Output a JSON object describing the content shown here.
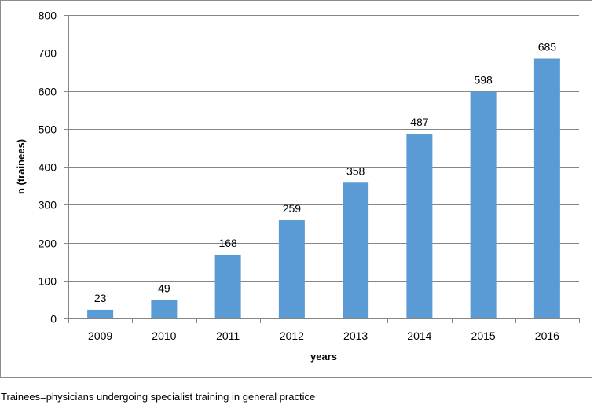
{
  "chart_data": {
    "type": "bar",
    "title": "",
    "categories": [
      "2009",
      "2010",
      "2011",
      "2012",
      "2013",
      "2014",
      "2015",
      "2016"
    ],
    "values": [
      23,
      49,
      168,
      259,
      358,
      487,
      598,
      685
    ],
    "xlabel": "years",
    "ylabel": "n (trainees)",
    "ylim": [
      0,
      800
    ],
    "yticks": [
      0,
      100,
      200,
      300,
      400,
      500,
      600,
      700,
      800
    ],
    "grid": true,
    "bar_color": "#5b9bd5"
  },
  "footnote": "Trainees=physicians undergoing specialist training in general practice"
}
